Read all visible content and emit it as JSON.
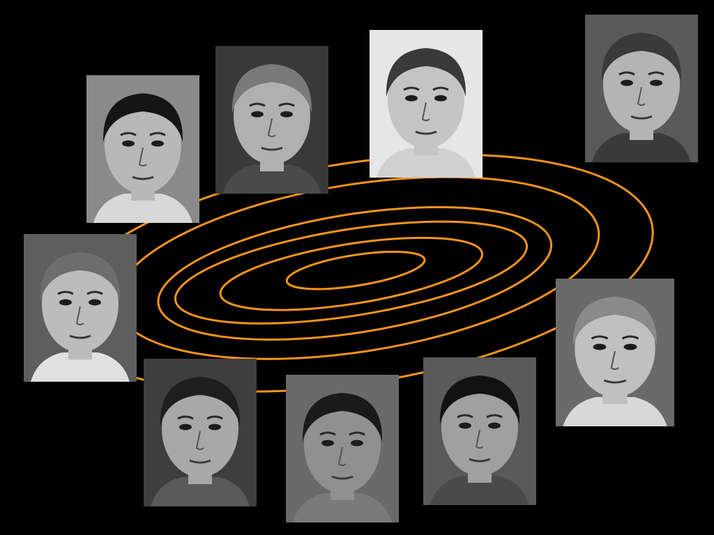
{
  "colors": {
    "background": "#000000",
    "contour": "#f7941d"
  },
  "contour_levels": 6,
  "faces": [
    {
      "name": "face-portrait-1",
      "hair": "#151515",
      "skin": "#b8b8b8",
      "bg": "#8a8a8a",
      "shirt": "#d8d8d8"
    },
    {
      "name": "face-portrait-2",
      "hair": "#7a7a7a",
      "skin": "#b0b0b0",
      "bg": "#3a3a3a",
      "shirt": "#4a4a4a"
    },
    {
      "name": "face-portrait-3",
      "hair": "#3a3a3a",
      "skin": "#c4c4c4",
      "bg": "#e6e6e6",
      "shirt": "#d0d0d0"
    },
    {
      "name": "face-portrait-4",
      "hair": "#3a3a3a",
      "skin": "#b4b4b4",
      "bg": "#5a5a5a",
      "shirt": "#3a3a3a"
    },
    {
      "name": "face-portrait-5",
      "hair": "#6e6e6e",
      "skin": "#bcbcbc",
      "bg": "#5e5e5e",
      "shirt": "#e0e0e0"
    },
    {
      "name": "face-portrait-6",
      "hair": "#8a8a8a",
      "skin": "#c0c0c0",
      "bg": "#6a6a6a",
      "shirt": "#d8d8d8"
    },
    {
      "name": "face-portrait-7",
      "hair": "#1e1e1e",
      "skin": "#a8a8a8",
      "bg": "#3e3e3e",
      "shirt": "#5a5a5a"
    },
    {
      "name": "face-portrait-8",
      "hair": "#1a1a1a",
      "skin": "#909090",
      "bg": "#6a6a6a",
      "shirt": "#7a7a7a"
    },
    {
      "name": "face-portrait-9",
      "hair": "#121212",
      "skin": "#a0a0a0",
      "bg": "#5a5a5a",
      "shirt": "#4a4a4a"
    }
  ]
}
